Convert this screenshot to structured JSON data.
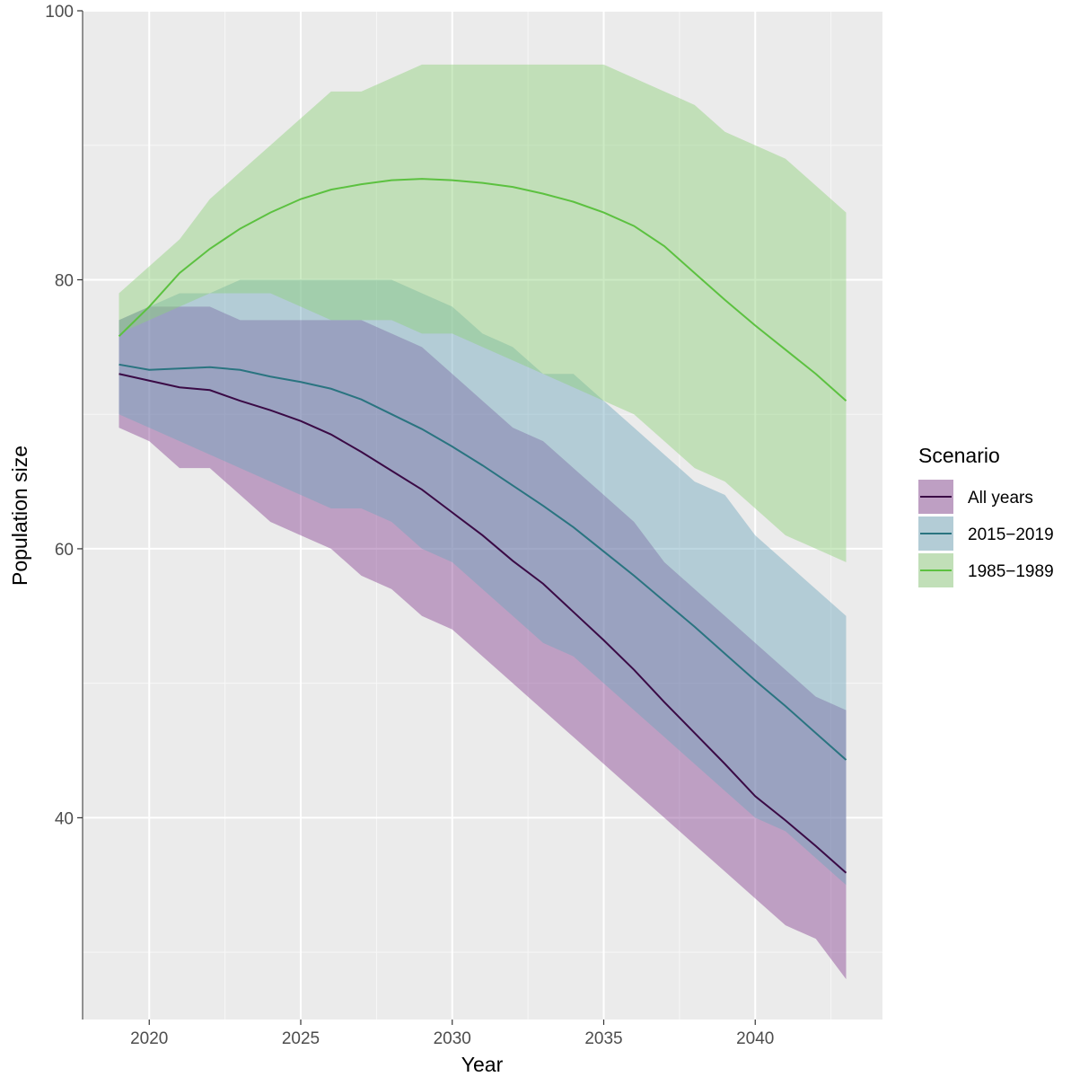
{
  "chart_data": {
    "type": "area",
    "xlabel": "Year",
    "ylabel": "Population size",
    "xlim": [
      2017.8,
      2044.2
    ],
    "ylim": [
      25,
      100
    ],
    "x_ticks": [
      2020,
      2025,
      2030,
      2035,
      2040
    ],
    "y_ticks": [
      40,
      60,
      80,
      100
    ],
    "x_tick_labels": [
      "2020",
      "2025",
      "2030",
      "2035",
      "2040"
    ],
    "y_tick_labels": [
      "40",
      "60",
      "80",
      "100"
    ],
    "x_minor_ticks": [
      2022.5,
      2027.5,
      2032.5,
      2037.5,
      2042.5
    ],
    "y_minor_ticks": [
      30,
      50,
      70,
      90
    ],
    "background": "#ebebeb",
    "grid": true,
    "legend": {
      "title": "Scenario",
      "placement": "right"
    },
    "x": [
      2019,
      2020,
      2021,
      2022,
      2023,
      2024,
      2025,
      2026,
      2027,
      2028,
      2029,
      2030,
      2031,
      2032,
      2033,
      2034,
      2035,
      2036,
      2037,
      2038,
      2039,
      2040,
      2041,
      2042,
      2043
    ],
    "series": [
      {
        "name": "All years",
        "line_color": "#3a0a45",
        "fill_color": "#7b2e87",
        "fill_opacity": 0.4,
        "mean": [
          73,
          72.5,
          72,
          71.8,
          71,
          70.3,
          69.5,
          68.5,
          67.2,
          65.8,
          64.4,
          62.7,
          61,
          59.1,
          57.4,
          55.3,
          53.2,
          51,
          48.6,
          46.3,
          44,
          41.6,
          39.8,
          37.9,
          35.9
        ],
        "upper": [
          77,
          78,
          78,
          78,
          77,
          77,
          77,
          77,
          77,
          76,
          75,
          73,
          71,
          69,
          68,
          66,
          64,
          62,
          59,
          57,
          55,
          53,
          51,
          49,
          48
        ],
        "lower": [
          69,
          68,
          66,
          66,
          64,
          62,
          61,
          60,
          58,
          57,
          55,
          54,
          52,
          50,
          48,
          46,
          44,
          42,
          40,
          38,
          36,
          34,
          32,
          31,
          28
        ]
      },
      {
        "name": "2015−2019",
        "line_color": "#2a7480",
        "fill_color": "#6fa7bd",
        "fill_opacity": 0.45,
        "mean": [
          73.7,
          73.3,
          73.4,
          73.5,
          73.3,
          72.8,
          72.4,
          71.9,
          71.1,
          70,
          68.9,
          67.6,
          66.2,
          64.7,
          63.2,
          61.6,
          59.8,
          58,
          56.1,
          54.2,
          52.2,
          50.2,
          48.3,
          46.3,
          44.3
        ],
        "upper": [
          77,
          78,
          79,
          79,
          80,
          80,
          80,
          80,
          80,
          80,
          79,
          78,
          76,
          75,
          73,
          73,
          71,
          69,
          67,
          65,
          64,
          61,
          59,
          57,
          55
        ],
        "lower": [
          70,
          69,
          68,
          67,
          66,
          65,
          64,
          63,
          63,
          62,
          60,
          59,
          57,
          55,
          53,
          52,
          50,
          48,
          46,
          44,
          42,
          40,
          39,
          37,
          35
        ]
      },
      {
        "name": "1985−1989",
        "line_color": "#5cc140",
        "fill_color": "#8ed17a",
        "fill_opacity": 0.45,
        "mean": [
          75.8,
          78,
          80.5,
          82.3,
          83.8,
          85,
          86,
          86.7,
          87.1,
          87.4,
          87.5,
          87.4,
          87.2,
          86.9,
          86.4,
          85.8,
          85,
          84,
          82.5,
          80.5,
          78.5,
          76.6,
          74.8,
          73,
          71
        ],
        "upper": [
          79,
          81,
          83,
          86,
          88,
          90,
          92,
          94,
          94,
          95,
          96,
          96,
          96,
          96,
          96,
          96,
          96,
          95,
          94,
          93,
          91,
          90,
          89,
          87,
          85
        ],
        "lower": [
          76,
          77,
          78,
          79,
          79,
          79,
          78,
          77,
          77,
          77,
          76,
          76,
          75,
          74,
          73,
          72,
          71,
          70,
          68,
          66,
          65,
          63,
          61,
          60,
          59
        ]
      }
    ]
  }
}
